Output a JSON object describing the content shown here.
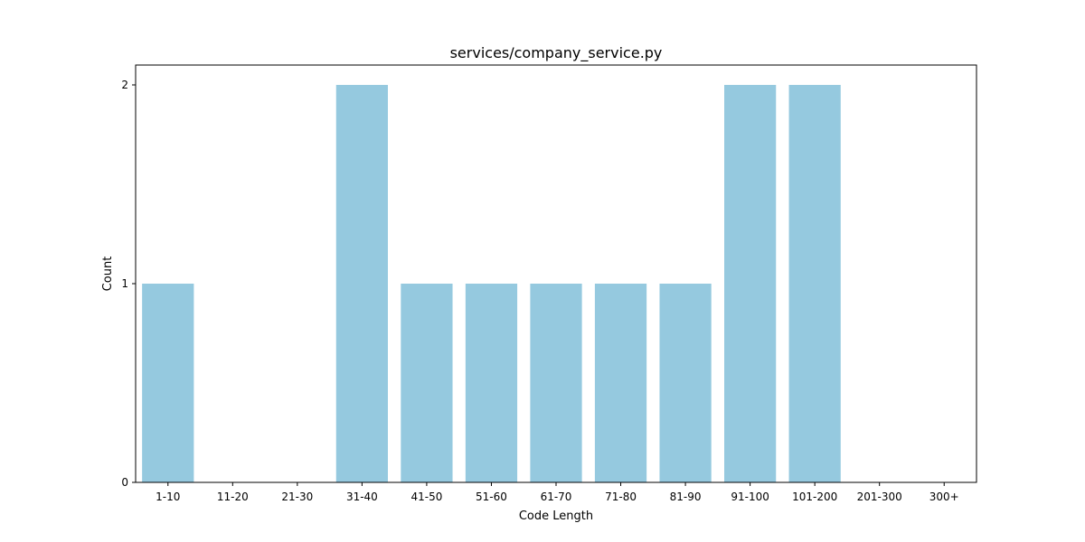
{
  "chart_data": {
    "type": "bar",
    "title": "services/company_service.py",
    "xlabel": "Code Length",
    "ylabel": "Count",
    "categories": [
      "1-10",
      "11-20",
      "21-30",
      "31-40",
      "41-50",
      "51-60",
      "61-70",
      "71-80",
      "81-90",
      "91-100",
      "101-200",
      "201-300",
      "300+"
    ],
    "values": [
      1,
      0,
      0,
      2,
      1,
      1,
      1,
      1,
      1,
      2,
      2,
      0,
      0
    ],
    "ylim": [
      0,
      2.1
    ],
    "yticks": [
      0,
      1,
      2
    ],
    "grid": false,
    "bar_color": "#95c9df"
  }
}
